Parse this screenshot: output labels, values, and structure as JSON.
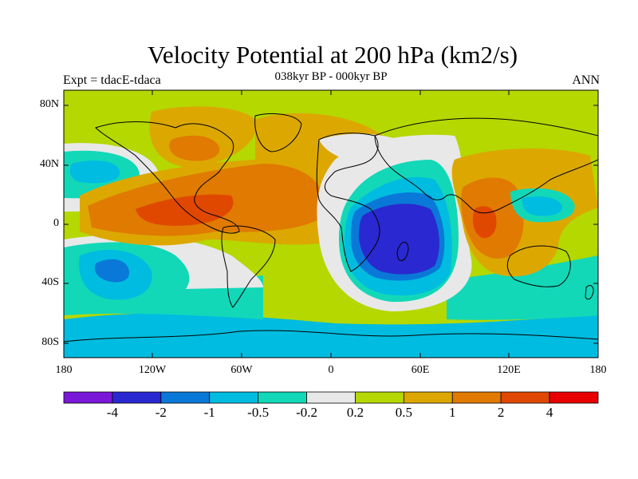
{
  "title": "Velocity Potential at 200 hPa (km2/s)",
  "subtitle": "038kyr BP - 000kyr BP",
  "left_label": "Expt = tdacE-tdaca",
  "right_label": "ANN",
  "lat_labels": [
    "80N",
    "40N",
    "0",
    "40S",
    "80S"
  ],
  "lon_labels": [
    "180",
    "120W",
    "60W",
    "0",
    "60E",
    "120E",
    "180"
  ],
  "colorbar": {
    "labels": [
      "-4",
      "-2",
      "-1",
      "-0.5",
      "-0.2",
      "0.2",
      "0.5",
      "1",
      "2",
      "4"
    ],
    "colors": [
      "#7a18d8",
      "#2a28d0",
      "#0a78d8",
      "#00bce0",
      "#12d8b8",
      "#e8e8e8",
      "#b4d800",
      "#dca800",
      "#e07a00",
      "#e04800",
      "#e80000"
    ]
  },
  "colors": {
    "ocean_base": "#b4d800"
  }
}
